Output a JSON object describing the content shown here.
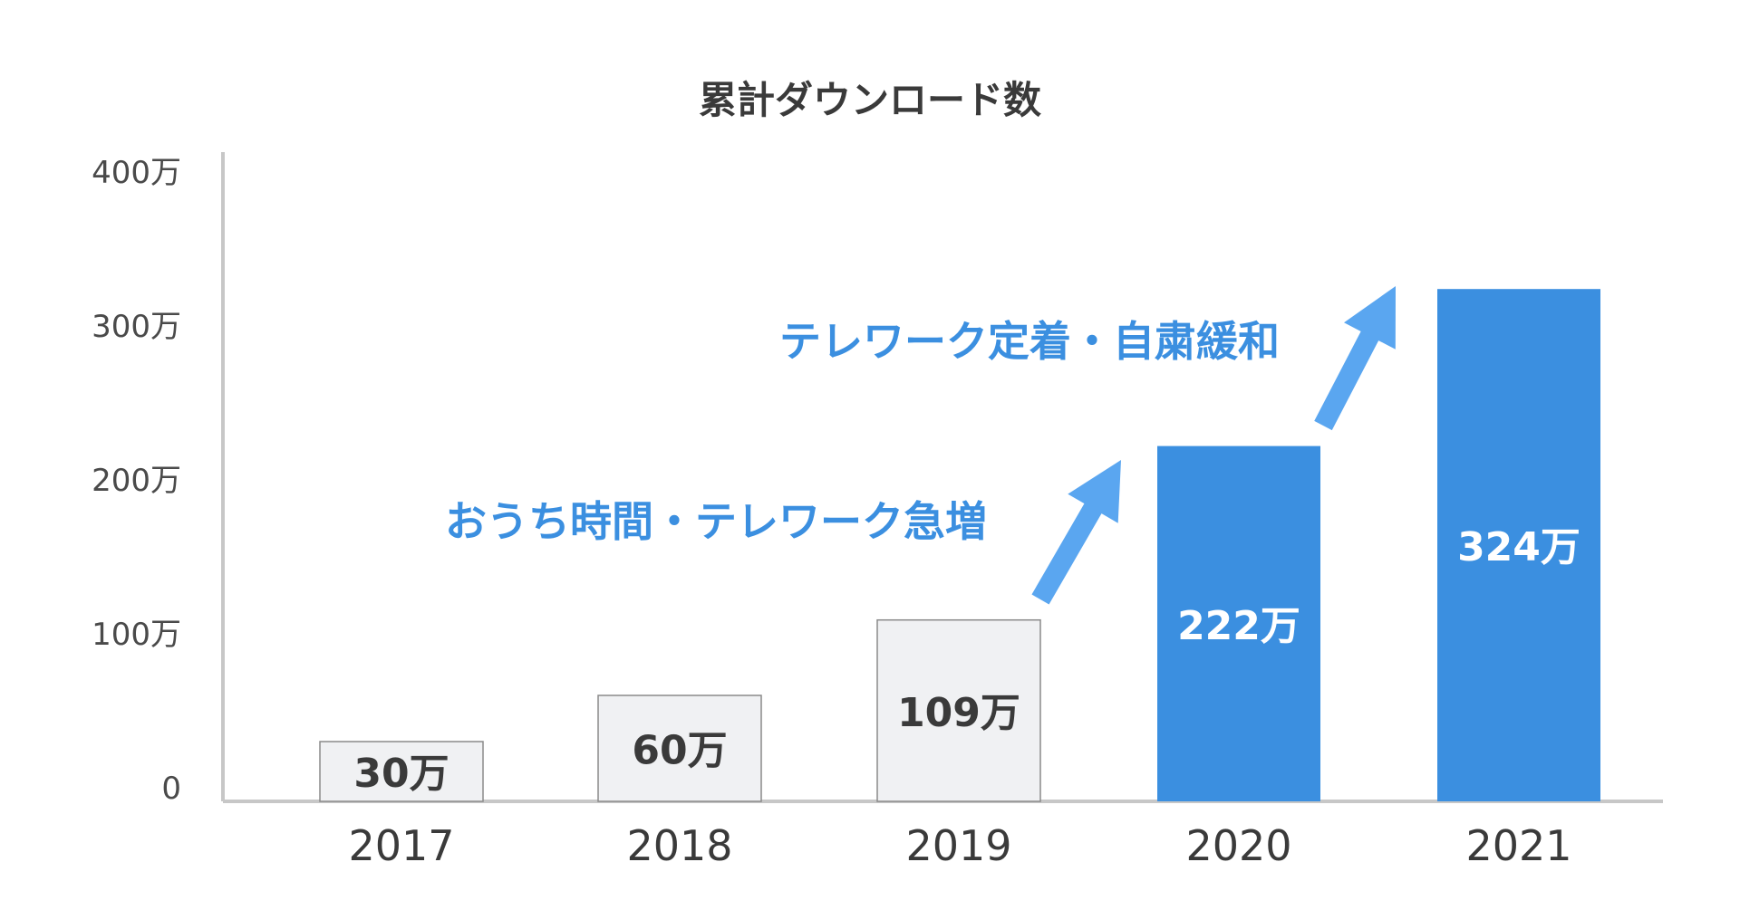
{
  "chart_data": {
    "type": "bar",
    "title": "累計ダウンロード数",
    "categories": [
      "2017",
      "2018",
      "2019",
      "2020",
      "2021"
    ],
    "values": [
      30,
      60,
      109,
      222,
      324
    ],
    "value_labels": [
      "30万",
      "60万",
      "109万",
      "222万",
      "324万"
    ],
    "value_unit": "万",
    "ylim": [
      0,
      400
    ],
    "yticks": [
      {
        "value": 0,
        "label": "0"
      },
      {
        "value": 100,
        "label": "100万"
      },
      {
        "value": 200,
        "label": "200万"
      },
      {
        "value": 300,
        "label": "300万"
      },
      {
        "value": 400,
        "label": "400万"
      }
    ],
    "xlabel": "",
    "ylabel": "",
    "grid": false,
    "legend": "none",
    "bar_colors": [
      "#f0f1f3",
      "#f0f1f3",
      "#f0f1f3",
      "#3b8fe0",
      "#3b8fe0"
    ],
    "bar_label_colors": [
      "#3a3a3a",
      "#3a3a3a",
      "#3a3a3a",
      "#ffffff",
      "#ffffff"
    ],
    "annotations": [
      {
        "text": "おうち時間・テレワーク急増",
        "from": "2019",
        "to": "2020",
        "color": "#3b8fe0"
      },
      {
        "text": "テレワーク定着・自粛緩和",
        "from": "2020",
        "to": "2021",
        "color": "#3b8fe0"
      }
    ],
    "colors": {
      "axis": "#c7c7c7",
      "accent": "#3b8fe0",
      "arrow": "#5aa6f0",
      "bar_outline": "#8a8a8a"
    }
  }
}
